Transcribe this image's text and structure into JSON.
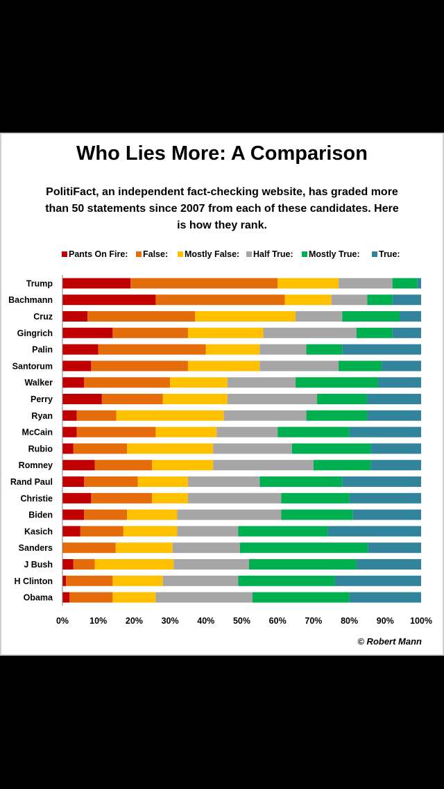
{
  "title": "Who Lies More: A Comparison",
  "subtitle": "PolitiFact,  an independent fact-checking website, has graded more than 50 statements since 2007 from each of these candidates. Here is how they rank.",
  "credit": "© Robert Mann",
  "colors": {
    "background": "#000000",
    "card": "#ffffff"
  },
  "chart_data": {
    "type": "bar",
    "orientation": "horizontal",
    "stacked": true,
    "title": "Who Lies More: A Comparison",
    "xlim": [
      0,
      100
    ],
    "x_ticks": [
      "0%",
      "10%",
      "20%",
      "30%",
      "40%",
      "50%",
      "60%",
      "70%",
      "80%",
      "90%",
      "100%"
    ],
    "legend_position": "top",
    "grid": false,
    "categories": [
      "Trump",
      "Bachmann",
      "Cruz",
      "Gingrich",
      "Palin",
      "Santorum",
      "Walker",
      "Perry",
      "Ryan",
      "McCain",
      "Rubio",
      "Romney",
      "Rand Paul",
      "Christie",
      "Biden",
      "Kasich",
      "Sanders",
      "J Bush",
      "H Clinton",
      "Obama"
    ],
    "series": [
      {
        "name": "Pants On Fire:",
        "color": "#c00000",
        "values": [
          19,
          26,
          7,
          14,
          10,
          8,
          6,
          11,
          4,
          4,
          3,
          9,
          6,
          8,
          6,
          5,
          0,
          3,
          1,
          2
        ]
      },
      {
        "name": "False:",
        "color": "#e46c0a",
        "values": [
          41,
          36,
          30,
          21,
          30,
          27,
          24,
          17,
          11,
          22,
          15,
          16,
          15,
          17,
          12,
          12,
          15,
          6,
          13,
          12
        ]
      },
      {
        "name": "Mostly False:",
        "color": "#ffc000",
        "values": [
          17,
          13,
          28,
          21,
          15,
          20,
          16,
          18,
          30,
          17,
          24,
          17,
          14,
          10,
          14,
          15,
          16,
          22,
          14,
          12
        ]
      },
      {
        "name": "Half True:",
        "color": "#a6a6a6",
        "values": [
          15,
          10,
          13,
          26,
          13,
          22,
          19,
          25,
          23,
          17,
          22,
          28,
          20,
          26,
          29,
          17,
          19,
          21,
          21,
          27
        ]
      },
      {
        "name": "Mostly True:",
        "color": "#00b050",
        "values": [
          7,
          7,
          16,
          10,
          10,
          12,
          23,
          14,
          17,
          20,
          22,
          16,
          23,
          19,
          20,
          25,
          36,
          30,
          27,
          27
        ]
      },
      {
        "name": "True:",
        "color": "#31849b",
        "values": [
          1,
          8,
          6,
          8,
          22,
          11,
          12,
          15,
          15,
          20,
          14,
          14,
          22,
          20,
          19,
          26,
          15,
          18,
          24,
          20
        ]
      }
    ]
  }
}
